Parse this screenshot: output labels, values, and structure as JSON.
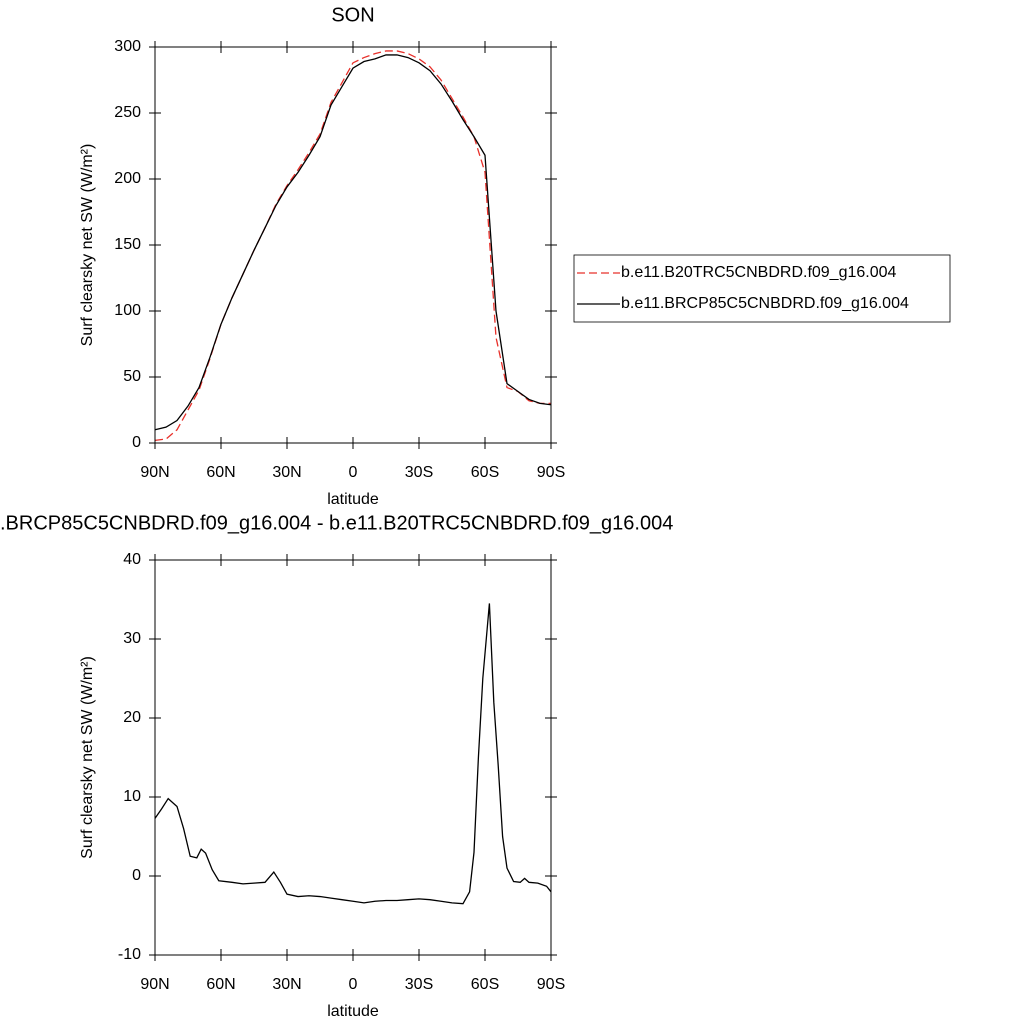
{
  "chart_data": [
    {
      "type": "line",
      "title": "SON",
      "xlabel": "latitude",
      "ylabel": "Surf clearsky net SW (W/m²)",
      "x": [
        90,
        85,
        80,
        75,
        70,
        65,
        60,
        55,
        50,
        45,
        40,
        35,
        30,
        25,
        20,
        15,
        10,
        5,
        0,
        -5,
        -10,
        -15,
        -20,
        -25,
        -30,
        -35,
        -40,
        -45,
        -50,
        -55,
        -60,
        -65,
        -70,
        -75,
        -80,
        -85,
        -90
      ],
      "series": [
        {
          "name": "b.e11.B20TRC5CNBDRD.f09_g16.004",
          "color": "#e8302a",
          "dashed": true,
          "values": [
            2,
            3,
            10,
            25,
            40,
            64,
            90,
            110,
            128,
            146,
            163,
            181,
            195,
            207,
            220,
            234,
            258,
            273,
            288,
            292,
            295,
            297,
            297,
            295,
            291,
            285,
            275,
            261,
            247,
            232,
            205,
            80,
            42,
            39,
            32,
            30,
            30
          ]
        },
        {
          "name": "b.e11.BRCP85C5CNBDRD.f09_g16.004",
          "color": "#000000",
          "dashed": false,
          "values": [
            10,
            12,
            17,
            28,
            42,
            65,
            90,
            110,
            128,
            146,
            163,
            180,
            194,
            205,
            218,
            232,
            256,
            270,
            284,
            289,
            291,
            294,
            294,
            292,
            288,
            282,
            272,
            259,
            245,
            232,
            218,
            100,
            45,
            39,
            33,
            30,
            29
          ]
        }
      ],
      "xlim": [
        90,
        -90
      ],
      "xticks": [
        {
          "value": 90,
          "label": "90N"
        },
        {
          "value": 60,
          "label": "60N"
        },
        {
          "value": 30,
          "label": "30N"
        },
        0,
        {
          "value": -30,
          "label": "30S"
        },
        {
          "value": -60,
          "label": "60S"
        },
        {
          "value": -90,
          "label": "90S"
        }
      ],
      "ylim": [
        0,
        300
      ],
      "yticks": [
        0,
        50,
        100,
        150,
        200,
        250,
        300
      ],
      "legend": "right"
    },
    {
      "type": "line",
      "title": ".BRCP85C5CNBDRD.f09_g16.004 - b.e11.B20TRC5CNBDRD.f09_g16.004",
      "xlabel": "latitude",
      "ylabel": "Surf clearsky net SW (W/m²)",
      "x": [
        90,
        87,
        84,
        80,
        77,
        74,
        71,
        69,
        67,
        64,
        61,
        55,
        50,
        45,
        40,
        36,
        33,
        30,
        25,
        20,
        15,
        10,
        5,
        0,
        -5,
        -10,
        -15,
        -20,
        -25,
        -30,
        -35,
        -40,
        -45,
        -50,
        -53,
        -55,
        -57,
        -59,
        -62,
        -64,
        -66,
        -68,
        -70,
        -73,
        -76,
        -78,
        -80,
        -84,
        -88,
        -90
      ],
      "series": [
        {
          "color": "#000000",
          "dashed": false,
          "values": [
            7.3,
            8.5,
            9.8,
            8.8,
            6,
            2.5,
            2.3,
            3.4,
            2.9,
            0.8,
            -0.6,
            -0.8,
            -1,
            -0.9,
            -0.8,
            0.5,
            -0.8,
            -2.3,
            -2.6,
            -2.5,
            -2.6,
            -2.8,
            -3,
            -3.2,
            -3.4,
            -3.2,
            -3.1,
            -3.1,
            -3,
            -2.9,
            -3,
            -3.2,
            -3.4,
            -3.5,
            -2,
            3,
            15,
            25,
            34.5,
            22,
            14,
            5,
            1,
            -0.7,
            -0.8,
            -0.3,
            -0.8,
            -0.9,
            -1.3,
            -2
          ]
        }
      ],
      "xlim": [
        90,
        -90
      ],
      "xticks": [
        {
          "value": 90,
          "label": "90N"
        },
        {
          "value": 60,
          "label": "60N"
        },
        {
          "value": 30,
          "label": "30N"
        },
        0,
        {
          "value": -30,
          "label": "30S"
        },
        {
          "value": -60,
          "label": "60S"
        },
        {
          "value": -90,
          "label": "90S"
        }
      ],
      "ylim": [
        -10,
        40
      ],
      "yticks": [
        -10,
        0,
        10,
        20,
        30,
        40
      ]
    }
  ]
}
